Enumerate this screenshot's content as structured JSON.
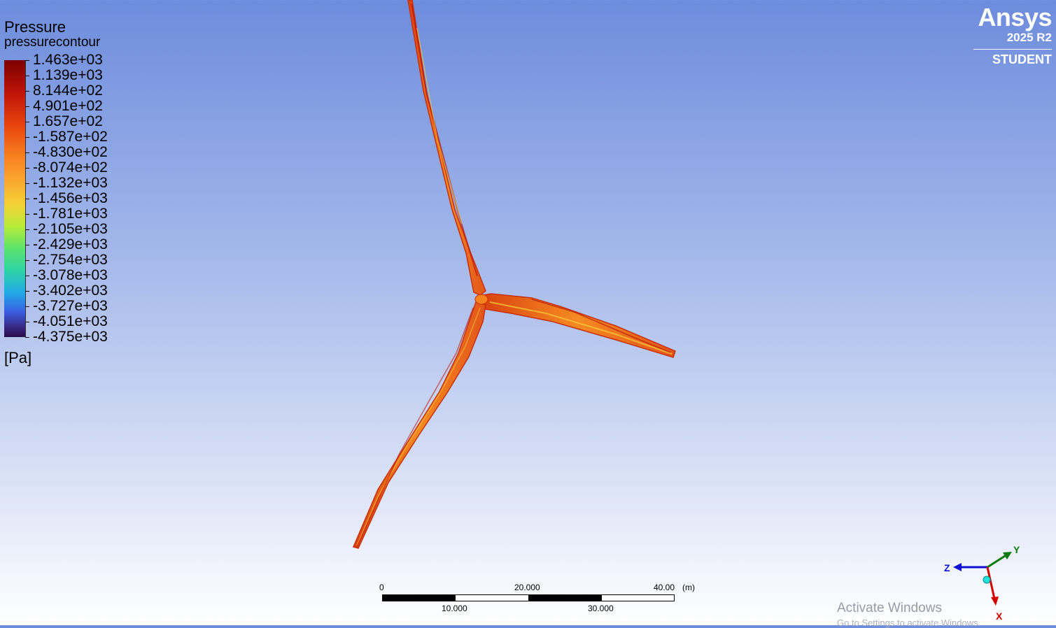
{
  "legend": {
    "title": "Pressure",
    "subtitle": "pressurecontour",
    "unit": "[Pa]",
    "values": [
      "1.463e+03",
      "1.139e+03",
      "8.144e+02",
      "4.901e+02",
      "1.657e+02",
      "-1.587e+02",
      "-4.830e+02",
      "-8.074e+02",
      "-1.132e+03",
      "-1.456e+03",
      "-1.781e+03",
      "-2.105e+03",
      "-2.429e+03",
      "-2.754e+03",
      "-3.078e+03",
      "-3.402e+03",
      "-3.727e+03",
      "-4.051e+03",
      "-4.375e+03"
    ],
    "colormap": [
      "#7a0000",
      "#c01408",
      "#e8460e",
      "#f77c1e",
      "#fba12e",
      "#f4d035",
      "#b7ec3a",
      "#5ce36c",
      "#2ed3a6",
      "#22a9e6",
      "#3a5de0",
      "#3a2a8a",
      "#2a0c4a"
    ]
  },
  "branding": {
    "name": "Ansys",
    "version": "2025 R2",
    "edition": "STUDENT"
  },
  "scale": {
    "top_labels": [
      "0",
      "20.000",
      "40.00"
    ],
    "bottom_labels": [
      "10.000",
      "30.000"
    ],
    "unit": "(m)"
  },
  "axes": {
    "x_label": "X",
    "y_label": "Y",
    "z_label": "Z",
    "x_color": "#d40000",
    "y_color": "#0a7a0a",
    "z_color": "#1010d0"
  },
  "watermark": {
    "line1": "Activate Windows",
    "line2": "Go to Settings to activate Windows."
  },
  "model": {
    "blade_color": "#f3821f",
    "edge_color": "#c8300c",
    "highlight_color": "#f5c93a"
  }
}
